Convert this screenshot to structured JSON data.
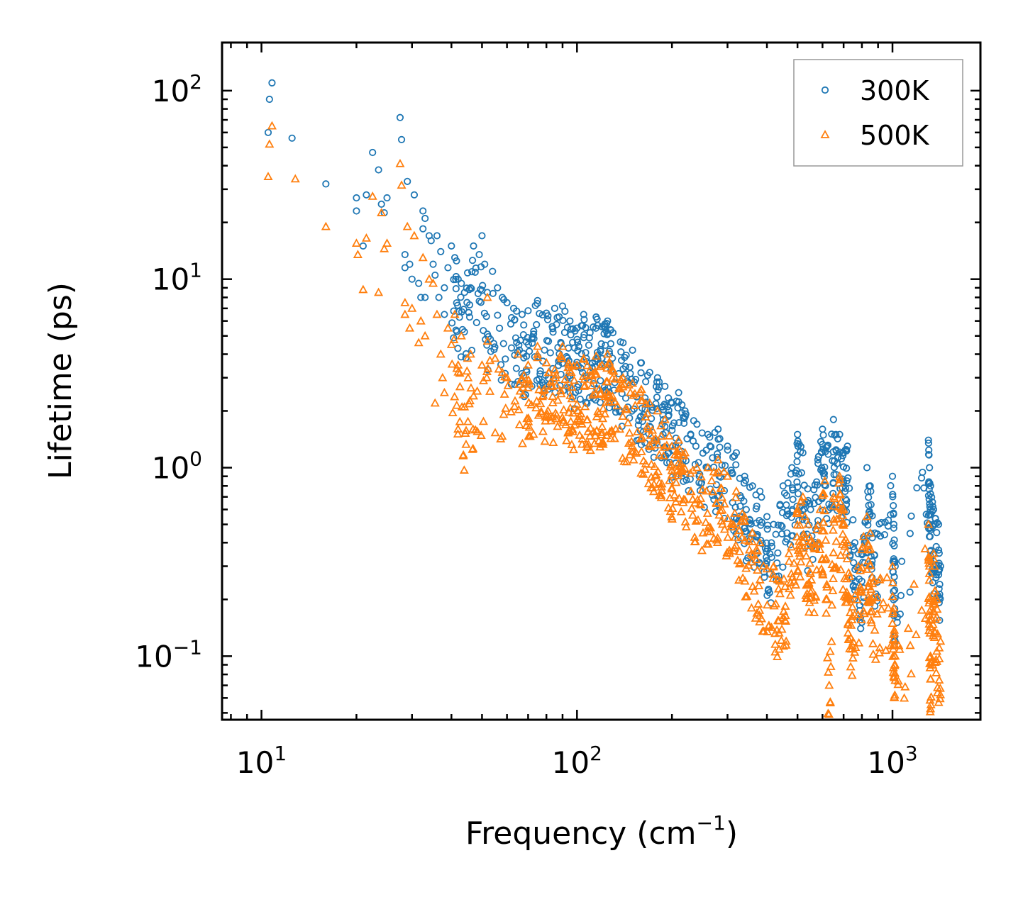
{
  "chart_data": {
    "type": "scatter",
    "xscale": "log",
    "yscale": "log",
    "xlim": [
      7.5,
      1900
    ],
    "ylim": [
      0.046,
      180
    ],
    "xlabel": "Frequency (cm",
    "xlabel_sup": "−1",
    "xlabel_end": ")",
    "ylabel": "Lifetime (ps)",
    "grid": false,
    "legend_position": "top-right",
    "x_ticks": [
      {
        "value": 10,
        "base": "10",
        "exp": "1"
      },
      {
        "value": 100,
        "base": "10",
        "exp": "2"
      },
      {
        "value": 1000,
        "base": "10",
        "exp": "3"
      }
    ],
    "y_ticks": [
      {
        "value": 0.1,
        "base": "10",
        "exp": "−1"
      },
      {
        "value": 1,
        "base": "10",
        "exp": "0"
      },
      {
        "value": 10,
        "base": "10",
        "exp": "1"
      },
      {
        "value": 100,
        "base": "10",
        "exp": "2"
      }
    ],
    "series": [
      {
        "name": "300K",
        "marker": "circle",
        "color": "#1f77b4",
        "points": [
          [
            10.5,
            60
          ],
          [
            10.6,
            90
          ],
          [
            10.8,
            110
          ],
          [
            12.5,
            56
          ],
          [
            16,
            32
          ],
          [
            20,
            27
          ],
          [
            20,
            23
          ],
          [
            21,
            15
          ],
          [
            21.5,
            28
          ],
          [
            22.5,
            47
          ],
          [
            23.5,
            38
          ],
          [
            24,
            25
          ],
          [
            24.5,
            22.5
          ],
          [
            25,
            27
          ],
          [
            27.5,
            72
          ],
          [
            27.8,
            55
          ],
          [
            28.5,
            13.5
          ],
          [
            28.5,
            11.5
          ],
          [
            29,
            33
          ],
          [
            29.5,
            12
          ],
          [
            30,
            10
          ],
          [
            30.5,
            28
          ],
          [
            31.5,
            9.5
          ],
          [
            32,
            8
          ],
          [
            32.5,
            23
          ],
          [
            32.5,
            18.5
          ],
          [
            33,
            21
          ],
          [
            33,
            8
          ],
          [
            34,
            17
          ],
          [
            34.5,
            16
          ],
          [
            35,
            12
          ],
          [
            35.5,
            10.5
          ],
          [
            36,
            17
          ],
          [
            36.5,
            8
          ],
          [
            37,
            14
          ],
          [
            38,
            9
          ],
          [
            38,
            6.5
          ],
          [
            39,
            11.5
          ],
          [
            40,
            15
          ],
          [
            41,
            13
          ],
          [
            41.5,
            12.5
          ],
          [
            42,
            10
          ],
          [
            43,
            9.5
          ],
          [
            44,
            8.5
          ],
          [
            45,
            10.8
          ],
          [
            46,
            9
          ],
          [
            47,
            15
          ],
          [
            49,
            13.5
          ],
          [
            50,
            17
          ],
          [
            51,
            12
          ],
          [
            52,
            8.5
          ],
          [
            54,
            11
          ],
          [
            56,
            9
          ],
          [
            58,
            8
          ],
          [
            60,
            7.5
          ],
          [
            63,
            7
          ],
          [
            67,
            6.5
          ],
          [
            70,
            6.8
          ],
          [
            75,
            7.7
          ],
          [
            80,
            6.6
          ],
          [
            85,
            7
          ],
          [
            90,
            7.2
          ],
          [
            95,
            6
          ],
          [
            100,
            5.5
          ],
          [
            105,
            6.5
          ],
          [
            110,
            5.2
          ],
          [
            115,
            6.3
          ],
          [
            120,
            5.6
          ],
          [
            125,
            6
          ],
          [
            130,
            5.2
          ],
          [
            140,
            4.6
          ],
          [
            150,
            4.2
          ],
          [
            160,
            3.6
          ],
          [
            170,
            3.2
          ],
          [
            180,
            3
          ],
          [
            190,
            2.7
          ],
          [
            200,
            2.2
          ],
          [
            210,
            2.5
          ],
          [
            220,
            2
          ],
          [
            240,
            1.7
          ],
          [
            260,
            1.5
          ],
          [
            280,
            1.6
          ],
          [
            300,
            1.3
          ],
          [
            320,
            1.2
          ],
          [
            340,
            0.9
          ],
          [
            360,
            0.8
          ],
          [
            380,
            0.75
          ],
          [
            400,
            0.55
          ],
          [
            420,
            0.5
          ],
          [
            450,
            0.8
          ],
          [
            480,
            1
          ],
          [
            500,
            1.5
          ],
          [
            520,
            1.2
          ],
          [
            550,
            0.6
          ],
          [
            580,
            1.1
          ],
          [
            600,
            1.6
          ],
          [
            620,
            1.3
          ],
          [
            650,
            1.8
          ],
          [
            680,
            1.5
          ],
          [
            700,
            1.2
          ],
          [
            720,
            1.3
          ],
          [
            760,
            0.4
          ],
          [
            800,
            0.35
          ],
          [
            830,
            1
          ],
          [
            850,
            0.8
          ],
          [
            880,
            0.45
          ],
          [
            1000,
            0.9
          ],
          [
            1010,
            0.5
          ],
          [
            1020,
            0.3
          ],
          [
            1300,
            1.4
          ],
          [
            1310,
            1
          ],
          [
            1320,
            0.8
          ],
          [
            1350,
            0.6
          ],
          [
            1400,
            0.5
          ],
          [
            1420,
            0.3
          ]
        ]
      },
      {
        "name": "500K",
        "marker": "triangle",
        "color": "#ff7f0e",
        "points": [
          [
            10.5,
            35
          ],
          [
            10.6,
            52
          ],
          [
            10.8,
            65
          ],
          [
            12.8,
            34
          ],
          [
            16,
            19
          ],
          [
            20,
            15.5
          ],
          [
            20.2,
            13.5
          ],
          [
            21,
            8.8
          ],
          [
            21.5,
            16.5
          ],
          [
            22.5,
            27.5
          ],
          [
            23.5,
            8.5
          ],
          [
            24,
            22.5
          ],
          [
            24.5,
            14.5
          ],
          [
            25,
            15.5
          ],
          [
            27.5,
            41
          ],
          [
            27.8,
            31.5
          ],
          [
            28.5,
            7.5
          ],
          [
            28.5,
            6.5
          ],
          [
            29,
            19
          ],
          [
            29.5,
            5.5
          ],
          [
            30,
            7
          ],
          [
            30.5,
            17
          ],
          [
            31.5,
            4.6
          ],
          [
            32,
            6
          ],
          [
            32.5,
            13
          ],
          [
            33,
            5
          ],
          [
            34,
            10
          ],
          [
            35,
            9.5
          ],
          [
            35.5,
            2.2
          ],
          [
            36,
            6.5
          ],
          [
            37,
            4
          ],
          [
            37.5,
            3
          ],
          [
            38,
            2.5
          ],
          [
            39,
            5.5
          ],
          [
            40,
            4.5
          ],
          [
            41,
            6.5
          ],
          [
            42,
            3.5
          ],
          [
            43,
            5
          ],
          [
            44,
            2.1
          ],
          [
            45,
            3.8
          ],
          [
            46,
            4
          ],
          [
            47,
            2.4
          ],
          [
            50,
            3.5
          ],
          [
            52,
            8
          ],
          [
            55,
            3.8
          ],
          [
            58,
            3.2
          ],
          [
            60,
            3
          ],
          [
            65,
            4
          ],
          [
            70,
            3.5
          ],
          [
            75,
            4.4
          ],
          [
            80,
            3.6
          ],
          [
            85,
            3.3
          ],
          [
            90,
            4.4
          ],
          [
            95,
            3.5
          ],
          [
            100,
            3.5
          ],
          [
            105,
            3.8
          ],
          [
            110,
            3.3
          ],
          [
            115,
            3.9
          ],
          [
            120,
            3.5
          ],
          [
            125,
            4
          ],
          [
            130,
            3.3
          ],
          [
            140,
            3
          ],
          [
            150,
            2.8
          ],
          [
            160,
            2.6
          ],
          [
            170,
            2.2
          ],
          [
            180,
            2
          ],
          [
            190,
            1.8
          ],
          [
            200,
            1.3
          ],
          [
            210,
            1.4
          ],
          [
            220,
            1.2
          ],
          [
            240,
            1
          ],
          [
            260,
            1
          ],
          [
            280,
            1.1
          ],
          [
            300,
            0.9
          ],
          [
            320,
            0.75
          ],
          [
            340,
            0.55
          ],
          [
            360,
            0.45
          ],
          [
            380,
            0.4
          ],
          [
            420,
            0.3
          ],
          [
            440,
            0.25
          ],
          [
            470,
            0.35
          ],
          [
            500,
            0.6
          ],
          [
            520,
            0.7
          ],
          [
            540,
            0.5
          ],
          [
            560,
            0.4
          ],
          [
            590,
            0.6
          ],
          [
            610,
            0.85
          ],
          [
            630,
            0.07
          ],
          [
            650,
            0.7
          ],
          [
            680,
            0.9
          ],
          [
            700,
            0.6
          ],
          [
            720,
            0.4
          ],
          [
            740,
            0.2
          ],
          [
            780,
            0.3
          ],
          [
            830,
            0.55
          ],
          [
            850,
            0.45
          ],
          [
            870,
            0.25
          ],
          [
            1000,
            0.3
          ],
          [
            1010,
            0.18
          ],
          [
            1020,
            0.1
          ],
          [
            1300,
            0.5
          ],
          [
            1310,
            0.3
          ],
          [
            1320,
            0.1
          ],
          [
            1350,
            0.35
          ],
          [
            1380,
            0.2
          ],
          [
            1420,
            0.12
          ]
        ]
      }
    ]
  }
}
